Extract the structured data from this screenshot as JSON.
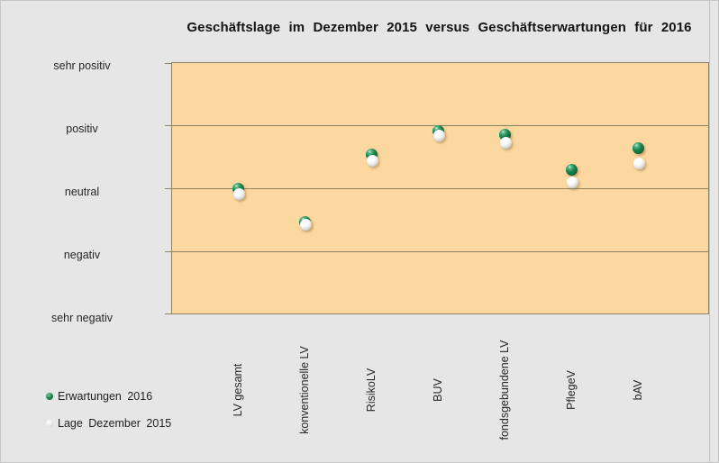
{
  "colors": {
    "page_bg": "#E6E6E6",
    "plot_bg": "#FDD7A0",
    "grid": "#8A8265",
    "marker_green": "#0F7B43",
    "marker_white": "#FFFFFF",
    "text": "#1A1A1A"
  },
  "chart_data": {
    "type": "scatter",
    "title": "Geschäftslage im Dezember 2015 versus Geschäftserwartungen für 2016",
    "xlabel": "",
    "ylabel": "",
    "grid": "horizontal",
    "legend_position": "bottom-left",
    "ylim": [
      -2,
      2
    ],
    "y_tick_labels": [
      "sehr positiv",
      "positiv",
      "neutral",
      "negativ",
      "sehr negativ"
    ],
    "y_tick_values": [
      2,
      1,
      0,
      -1,
      -2
    ],
    "x_tick_rotation_degrees": 90,
    "categories": [
      "LV gesamt",
      "konventionelle LV",
      "RisikoLV",
      "BUV",
      "fondsgebundene LV",
      "PflegeV",
      "bAV"
    ],
    "series": [
      {
        "name": "Erwartungen 2016",
        "marker": "green-sphere",
        "values": [
          0.0,
          -0.54,
          0.54,
          0.91,
          0.85,
          0.29,
          0.64
        ]
      },
      {
        "name": "Lage Dezember 2015",
        "marker": "white-sphere",
        "values": [
          -0.09,
          -0.58,
          0.44,
          0.84,
          0.72,
          0.1,
          0.4
        ]
      }
    ]
  }
}
